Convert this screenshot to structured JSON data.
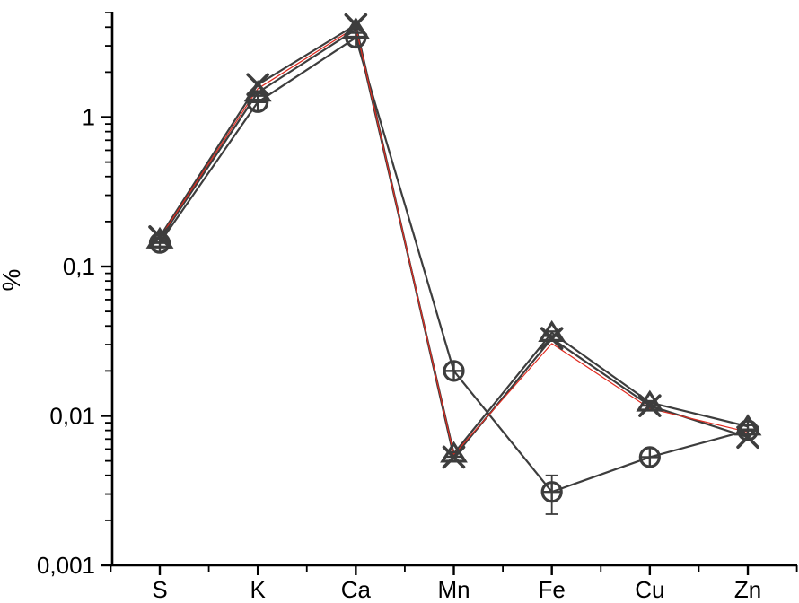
{
  "colors": {
    "axis": "#000000",
    "marker_dark": "#3d3d3d",
    "reference_red": "#e02b20",
    "background": "#ffffff"
  },
  "chart_data": {
    "type": "line",
    "title": "",
    "xlabel": "",
    "ylabel": "%",
    "yscale": "log",
    "ylim": [
      0.001,
      5
    ],
    "grid": false,
    "legend": "none",
    "x_categories": [
      "S",
      "K",
      "Ca",
      "Mn",
      "Fe",
      "Cu",
      "Zn"
    ],
    "y_ticks": [
      {
        "label": "1",
        "value": 1
      },
      {
        "label": "0,1",
        "value": 0.1
      },
      {
        "label": "0,01",
        "value": 0.01
      },
      {
        "label": "0,001",
        "value": 0.001
      }
    ],
    "series": [
      {
        "name": "circle-plus-series",
        "marker": "circle-plus",
        "color": "#3d3d3d",
        "line_width": 2.2,
        "values": [
          0.144,
          1.26,
          3.4,
          0.02,
          0.0031,
          0.0053,
          0.008
        ],
        "error_bars": [
          null,
          null,
          null,
          null,
          [
            0.0022,
            0.004
          ],
          null,
          null
        ]
      },
      {
        "name": "triangle-series",
        "marker": "triangle-lined",
        "color": "#3d3d3d",
        "line_width": 2.2,
        "values": [
          0.152,
          1.46,
          3.85,
          0.0056,
          0.036,
          0.0123,
          0.0085
        ],
        "error_bars": [
          null,
          null,
          null,
          null,
          null,
          null,
          null
        ]
      },
      {
        "name": "x-series",
        "marker": "x",
        "color": "#3d3d3d",
        "line_width": 2.2,
        "values": [
          0.158,
          1.65,
          4.15,
          0.0053,
          0.033,
          0.0117,
          0.0072
        ],
        "error_bars": [
          null,
          null,
          null,
          null,
          null,
          null,
          null
        ]
      },
      {
        "name": "red-reference-line",
        "marker": "none",
        "color": "#e02b20",
        "line_width": 1.2,
        "values": [
          0.155,
          1.55,
          4.0,
          0.0055,
          0.0305,
          0.0112,
          0.0078
        ],
        "error_bars": [
          null,
          null,
          null,
          null,
          null,
          null,
          null
        ]
      }
    ]
  }
}
